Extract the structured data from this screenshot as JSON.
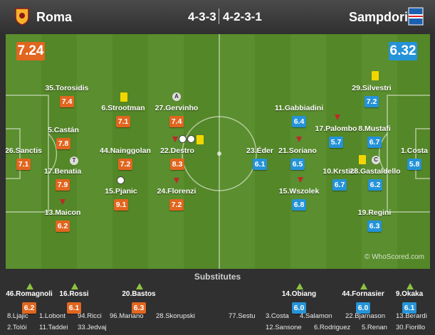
{
  "header": {
    "home_team": "Roma",
    "away_team": "Sampdoria",
    "home_formation": "4-3-3",
    "away_formation": "4-2-3-1",
    "home_crest_icon": "roma-crest-icon",
    "away_crest_icon": "sampdoria-crest-icon"
  },
  "ratings": {
    "home_overall": "7.24",
    "away_overall": "6.32"
  },
  "colors": {
    "home": "#e1661f",
    "away": "#2593d8",
    "yellow_card": "#f2d600",
    "sub_arrow": "#8bc43f",
    "pitch": "#5a8e2e"
  },
  "home_players": [
    {
      "name": "35.Torosidis",
      "rating": "7.4"
    },
    {
      "name": "6.Strootman",
      "rating": "7.1"
    },
    {
      "name": "27.Gervinho",
      "rating": "7.4"
    },
    {
      "name": "5.Castán",
      "rating": "7.8"
    },
    {
      "name": "26.Sanctis",
      "rating": "7.1"
    },
    {
      "name": "44.Nainggolan",
      "rating": "7.2"
    },
    {
      "name": "22.Destro",
      "rating": "8.3"
    },
    {
      "name": "17.Benatia",
      "rating": "7.9"
    },
    {
      "name": "15.Pjanic",
      "rating": "9.1"
    },
    {
      "name": "24.Florenzi",
      "rating": "7.2"
    },
    {
      "name": "13.Maicon",
      "rating": "6.2"
    }
  ],
  "away_players": [
    {
      "name": "29.Silvestri",
      "rating": "7.2"
    },
    {
      "name": "11.Gabbiadini",
      "rating": "6.4"
    },
    {
      "name": "17.Palombo",
      "rating": "5.7"
    },
    {
      "name": "8.Mustafi",
      "rating": "6.7"
    },
    {
      "name": "23.Éder",
      "rating": "6.1"
    },
    {
      "name": "21.Soriano",
      "rating": "6.5"
    },
    {
      "name": "1.Costa",
      "rating": "5.8"
    },
    {
      "name": "10.Krstici",
      "rating": "6.7"
    },
    {
      "name": "28.Gastaldello",
      "rating": "6.2"
    },
    {
      "name": "15.Wszolek",
      "rating": "6.8"
    },
    {
      "name": "19.Regini",
      "rating": "6.3"
    }
  ],
  "watermark": "© WhoScored.com",
  "subs": {
    "title": "Substitutes",
    "used": [
      {
        "name": "46.Romagnoli",
        "rating": "6.2",
        "team": "home"
      },
      {
        "name": "16.Rossi",
        "rating": "6.1",
        "team": "home"
      },
      {
        "name": "20.Bastos",
        "rating": "6.3",
        "team": "home"
      },
      {
        "name": "14.Obiang",
        "rating": "6.0",
        "team": "away"
      },
      {
        "name": "44.Fornasier",
        "rating": "6.0",
        "team": "away"
      },
      {
        "name": "9.Okaka",
        "rating": "6.1",
        "team": "away"
      }
    ],
    "unused": [
      "8.Ljajic",
      "1.Lobont",
      "94.Ricci",
      "96.Mariano",
      "28.Skorupski",
      "2.Tolói",
      "11.Taddei",
      "33.Jedvaj",
      "77.Sestu",
      "3.Costa",
      "4.Salamon",
      "22.Bjarnason",
      "13.Berardi",
      "12.Sansone",
      "6.Rodriguez",
      "5.Renan",
      "30.Fiorillo"
    ]
  }
}
